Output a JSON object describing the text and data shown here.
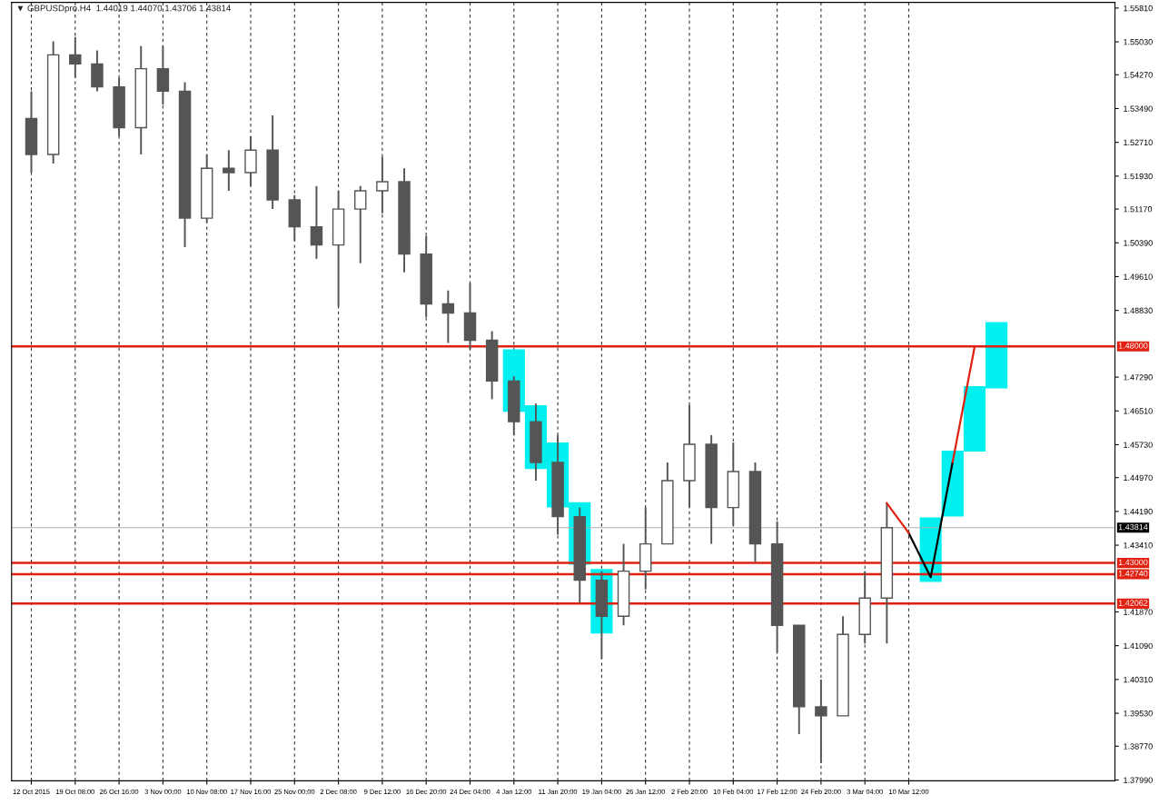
{
  "chart_data": {
    "type": "candlestick",
    "title": "▼ GBPUSDpro.H4  1.44019 1.44070 1.43706 1.43814",
    "categories": [
      "12 Oct 2015",
      null,
      "19 Oct 08:00",
      null,
      "26 Oct 16:00",
      null,
      "3 Nov 00:00",
      null,
      "10 Nov 08:00",
      null,
      "17 Nov 16:00",
      null,
      "25 Nov 00:00",
      null,
      "2 Dec 08:00",
      null,
      "9 Dec 12:00",
      null,
      "16 Dec 20:00",
      null,
      "24 Dec 04:00",
      null,
      "4 Jan 12:00",
      null,
      "11 Jan 20:00",
      null,
      "19 Jan 04:00",
      null,
      "26 Jan 12:00",
      null,
      "2 Feb 20:00",
      null,
      "10 Feb 04:00",
      null,
      "17 Feb 12:00",
      null,
      "24 Feb 20:00",
      null,
      "3 Mar 04:00",
      null,
      "10 Mar 12:00",
      null,
      null,
      null,
      null,
      null,
      null,
      null,
      null,
      null
    ],
    "ohlc": [
      [
        1.5326,
        1.5389,
        1.5201,
        1.5243
      ],
      [
        1.5243,
        1.5504,
        1.5222,
        1.5473
      ],
      [
        1.5473,
        1.5514,
        1.542,
        1.5452
      ],
      [
        1.5452,
        1.5483,
        1.5389,
        1.5399
      ],
      [
        1.5399,
        1.542,
        1.5285,
        1.5305
      ],
      [
        1.5305,
        1.5493,
        1.5243,
        1.5441
      ],
      [
        1.5441,
        1.5493,
        1.5358,
        1.5389
      ],
      [
        1.5389,
        1.541,
        1.5029,
        1.5096
      ],
      [
        1.5096,
        1.5243,
        1.5086,
        1.5211
      ],
      [
        1.5211,
        1.5253,
        1.5159,
        1.5201
      ],
      [
        1.5201,
        1.5285,
        1.517,
        1.5253
      ],
      [
        1.5253,
        1.5333,
        1.5117,
        1.5138
      ],
      [
        1.5138,
        1.5149,
        1.5044,
        1.5076
      ],
      [
        1.5076,
        1.517,
        1.5002,
        1.5034
      ],
      [
        1.5034,
        1.5159,
        1.4892,
        1.5117
      ],
      [
        1.5117,
        1.517,
        1.4992,
        1.5159
      ],
      [
        1.5159,
        1.5238,
        1.5107,
        1.518
      ],
      [
        1.518,
        1.5211,
        1.4971,
        1.5013
      ],
      [
        1.5013,
        1.5055,
        1.4867,
        1.4898
      ],
      [
        1.4898,
        1.4929,
        1.4808,
        1.4877
      ],
      [
        1.4877,
        1.4946,
        1.4793,
        1.4814
      ],
      [
        1.4814,
        1.4835,
        1.4678,
        1.472
      ],
      [
        1.472,
        1.4731,
        1.4595,
        1.4626
      ],
      [
        1.4626,
        1.4668,
        1.449,
        1.4532
      ],
      [
        1.4532,
        1.4595,
        1.4365,
        1.4407
      ],
      [
        1.4407,
        1.4428,
        1.4208,
        1.426
      ],
      [
        1.426,
        1.4281,
        1.4079,
        1.4177
      ],
      [
        1.4177,
        1.4344,
        1.4156,
        1.4281
      ],
      [
        1.4281,
        1.4428,
        1.4239,
        1.4344
      ],
      [
        1.4344,
        1.4532,
        1.4344,
        1.449
      ],
      [
        1.449,
        1.4664,
        1.4428,
        1.4574
      ],
      [
        1.4574,
        1.4595,
        1.4344,
        1.4428
      ],
      [
        1.4428,
        1.4578,
        1.4386,
        1.4511
      ],
      [
        1.4511,
        1.4532,
        1.4302,
        1.4344
      ],
      [
        1.4344,
        1.4396,
        1.4093,
        1.4156
      ],
      [
        1.4156,
        1.4156,
        1.3905,
        1.3968
      ],
      [
        1.3968,
        1.4031,
        1.3838,
        1.3947
      ],
      [
        1.3947,
        1.4177,
        1.3947,
        1.4135
      ],
      [
        1.4135,
        1.4281,
        1.4114,
        1.4219
      ],
      [
        1.4219,
        1.4438,
        1.4114,
        1.43814
      ],
      null,
      null,
      null,
      null,
      null,
      null,
      null,
      null,
      null,
      null
    ],
    "color": "#555555",
    "series": [
      {
        "type": "bar",
        "color": "#00f0f0",
        "base": [
          null,
          null,
          null,
          null,
          null,
          null,
          null,
          null,
          null,
          null,
          null,
          null,
          null,
          null,
          null,
          null,
          null,
          null,
          null,
          null,
          null,
          null,
          1.4649,
          1.4517,
          1.4428,
          1.4296,
          1.4137,
          null,
          null,
          null,
          null,
          null,
          null,
          null,
          null,
          null,
          null,
          null,
          null,
          null,
          null,
          1.4256,
          1.4407,
          1.4557,
          1.4703,
          null,
          null,
          null,
          null,
          null
        ],
        "values": [
          null,
          null,
          null,
          null,
          null,
          null,
          null,
          null,
          null,
          null,
          null,
          null,
          null,
          null,
          null,
          null,
          null,
          null,
          null,
          null,
          null,
          null,
          0.0144,
          0.0147,
          0.015,
          0.0144,
          0.0149,
          null,
          null,
          null,
          null,
          null,
          null,
          null,
          null,
          null,
          null,
          null,
          null,
          null,
          null,
          0.0149,
          0.0152,
          0.0151,
          0.0153,
          null,
          null,
          null,
          null,
          null
        ]
      },
      {
        "type": "line",
        "color": "#000000",
        "values": [
          null,
          null,
          null,
          null,
          null,
          null,
          null,
          null,
          null,
          null,
          null,
          null,
          null,
          null,
          null,
          null,
          null,
          null,
          null,
          null,
          null,
          null,
          null,
          null,
          null,
          null,
          null,
          null,
          null,
          null,
          null,
          null,
          null,
          null,
          null,
          null,
          null,
          null,
          null,
          null,
          1.4369,
          1.4267,
          1.4533,
          null,
          null,
          null,
          null,
          null,
          null,
          null
        ]
      },
      {
        "type": "line",
        "color": "#e02010",
        "values": [
          null,
          null,
          null,
          null,
          null,
          null,
          null,
          null,
          null,
          null,
          null,
          null,
          null,
          null,
          null,
          null,
          null,
          null,
          null,
          null,
          null,
          null,
          null,
          null,
          null,
          null,
          null,
          null,
          null,
          null,
          null,
          null,
          null,
          null,
          null,
          null,
          null,
          null,
          null,
          1.4438,
          1.4369,
          null,
          1.4533,
          1.4798,
          null,
          null,
          null,
          null,
          null,
          null
        ]
      }
    ],
    "ylim": [
      1.3797,
      1.5594
    ],
    "yticks": [
      {
        "value": 1.5581,
        "label": "1.55810"
      },
      {
        "value": 1.5503,
        "label": "1.55030"
      },
      {
        "value": 1.5427,
        "label": "1.54270"
      },
      {
        "value": 1.5349,
        "label": "1.53490"
      },
      {
        "value": 1.5271,
        "label": "1.52710"
      },
      {
        "value": 1.5193,
        "label": "1.51930"
      },
      {
        "value": 1.5117,
        "label": "1.51170"
      },
      {
        "value": 1.5039,
        "label": "1.50390"
      },
      {
        "value": 1.4961,
        "label": "1.49610"
      },
      {
        "value": 1.4883,
        "label": "1.48830"
      },
      {
        "value": 1.4729,
        "label": "1.47290"
      },
      {
        "value": 1.4651,
        "label": "1.46510"
      },
      {
        "value": 1.4573,
        "label": "1.45730"
      },
      {
        "value": 1.4497,
        "label": "1.44970"
      },
      {
        "value": 1.4419,
        "label": "1.44190"
      },
      {
        "value": 1.4341,
        "label": "1.43410"
      },
      {
        "value": 1.4187,
        "label": "1.41870"
      },
      {
        "value": 1.4109,
        "label": "1.41090"
      },
      {
        "value": 1.4031,
        "label": "1.40310"
      },
      {
        "value": 1.3953,
        "label": "1.39530"
      },
      {
        "value": 1.3877,
        "label": "1.38770"
      },
      {
        "value": 1.3799,
        "label": "1.37990"
      }
    ],
    "ref_lines": [
      {
        "axis": "y",
        "value": 1.48,
        "label": "1.48000",
        "color": "#e02010"
      },
      {
        "axis": "y",
        "value": 1.43,
        "label": "1.43000",
        "color": "#e02010"
      },
      {
        "axis": "y",
        "value": 1.4274,
        "label": "1.42740",
        "color": "#e02010"
      },
      {
        "axis": "y",
        "value": 1.42062,
        "label": "1.42062",
        "color": "#e02010"
      },
      {
        "axis": "y",
        "value": 1.43814,
        "label": "1.43814",
        "color": "#b0b0b0"
      }
    ],
    "grid": "x"
  }
}
